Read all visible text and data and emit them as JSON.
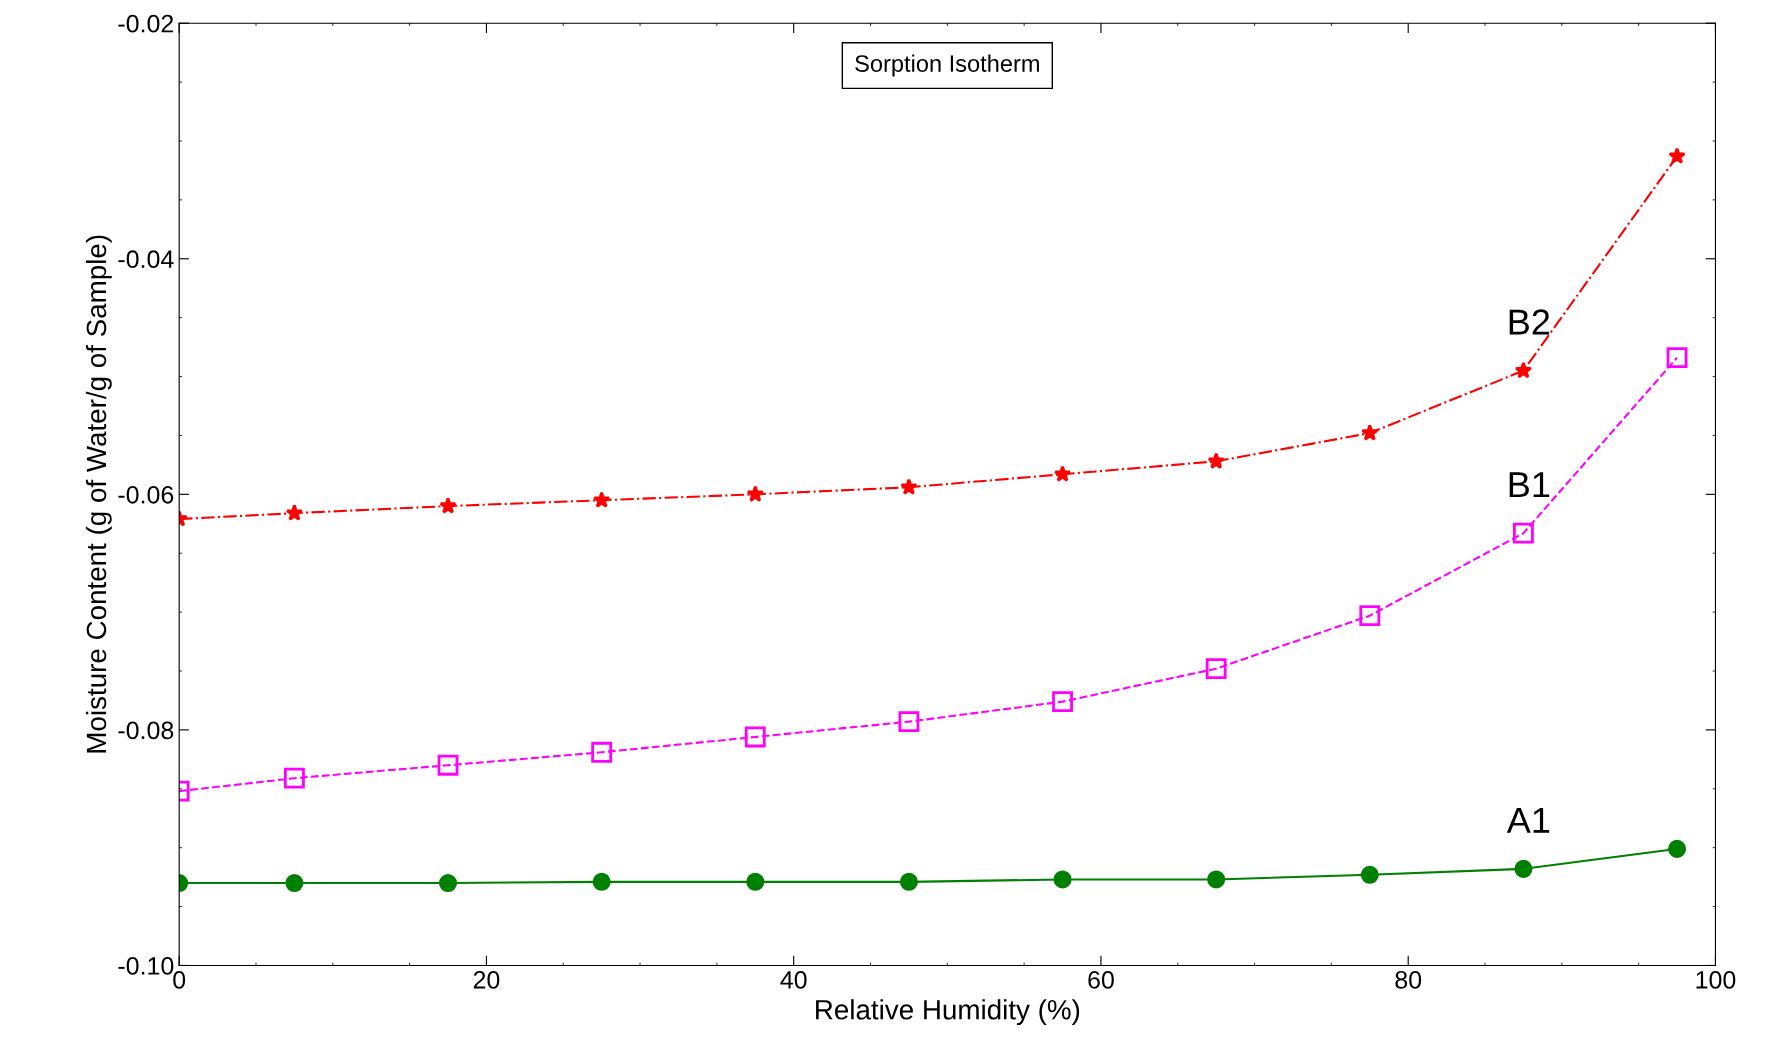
{
  "chart_data": {
    "type": "line",
    "title": "Sorption Isotherm",
    "xlabel": "Relative Humidity (%)",
    "ylabel": "Moisture Content (g of Water/g of Sample)",
    "x": [
      0,
      7.5,
      17.5,
      27.5,
      37.5,
      47.5,
      57.5,
      67.5,
      77.5,
      87.5,
      97.5
    ],
    "series": [
      {
        "name": "B2",
        "color": "#ff0000",
        "marker": "star",
        "line_style": "dashdot",
        "values": [
          -0.0621,
          -0.0616,
          -0.061,
          -0.0605,
          -0.06,
          -0.0594,
          -0.0583,
          -0.0572,
          -0.0548,
          -0.0495,
          -0.0313
        ]
      },
      {
        "name": "B1",
        "color": "#ff00ff",
        "marker": "square",
        "line_style": "dashed",
        "values": [
          -0.0852,
          -0.0841,
          -0.083,
          -0.0819,
          -0.0806,
          -0.0793,
          -0.0776,
          -0.0748,
          -0.0703,
          -0.0633,
          -0.0484
        ]
      },
      {
        "name": "A1",
        "color": "#008000",
        "marker": "circle",
        "line_style": "solid",
        "values": [
          -0.093,
          -0.093,
          -0.093,
          -0.0929,
          -0.0929,
          -0.0929,
          -0.0927,
          -0.0927,
          -0.0923,
          -0.0918,
          -0.0901
        ]
      }
    ],
    "xlim": [
      0,
      100
    ],
    "xticks": [
      0,
      20,
      40,
      60,
      80,
      100
    ],
    "ylim": [
      -0.1,
      -0.02
    ],
    "yticks": [
      {
        "value": -0.1,
        "label": "-0.10"
      },
      {
        "value": -0.08,
        "label": "-0.08"
      },
      {
        "value": -0.06,
        "label": "-0.06"
      },
      {
        "value": -0.04,
        "label": "-0.04"
      },
      {
        "value": -0.02,
        "label": "-0.02"
      }
    ],
    "grid": false,
    "legend": false
  }
}
